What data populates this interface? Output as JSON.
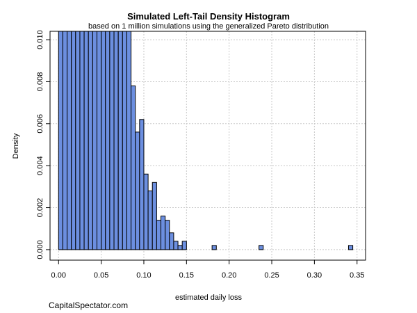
{
  "chart_data": {
    "type": "bar",
    "title": "Simulated Left-Tail Density Histogram",
    "subtitle": "based on 1 million simulations using the generalized Pareto distribution",
    "xlabel": "estimated daily loss",
    "ylabel": "Density",
    "xlim": [
      -0.01,
      0.36
    ],
    "ylim": [
      -0.0005,
      0.0104
    ],
    "x_ticks": [
      0.0,
      0.05,
      0.1,
      0.15,
      0.2,
      0.25,
      0.3,
      0.35
    ],
    "x_tick_labels": [
      "0.00",
      "0.05",
      "0.10",
      "0.15",
      "0.20",
      "0.25",
      "0.30",
      "0.35"
    ],
    "y_ticks": [
      0.0,
      0.002,
      0.004,
      0.006,
      0.008,
      0.01
    ],
    "y_tick_labels": [
      "0.000",
      "0.002",
      "0.004",
      "0.006",
      "0.008",
      "0.010"
    ],
    "grid": true,
    "bar_color": "#6C8FE0",
    "bar_edge_color": "#000000",
    "bins_start": [
      0.0,
      0.005,
      0.01,
      0.015,
      0.02,
      0.025,
      0.03,
      0.035,
      0.04,
      0.045,
      0.05,
      0.055,
      0.06,
      0.065,
      0.07,
      0.075,
      0.08,
      0.085,
      0.09,
      0.095,
      0.1,
      0.105,
      0.11,
      0.115,
      0.12,
      0.125,
      0.13,
      0.135,
      0.14,
      0.145,
      0.18,
      0.235,
      0.34
    ],
    "bin_width": 0.005,
    "values": [
      0.0104,
      0.0104,
      0.0104,
      0.0104,
      0.0104,
      0.0104,
      0.0104,
      0.0104,
      0.0104,
      0.0104,
      0.0104,
      0.0104,
      0.0104,
      0.0104,
      0.0104,
      0.0104,
      0.0104,
      0.0078,
      0.0056,
      0.0062,
      0.0036,
      0.0028,
      0.0032,
      0.0014,
      0.0016,
      0.0014,
      0.0008,
      0.0004,
      0.0002,
      0.0004,
      0.0002,
      0.0002,
      0.0002
    ]
  },
  "footer": {
    "credit": "CapitalSpectator.com"
  }
}
